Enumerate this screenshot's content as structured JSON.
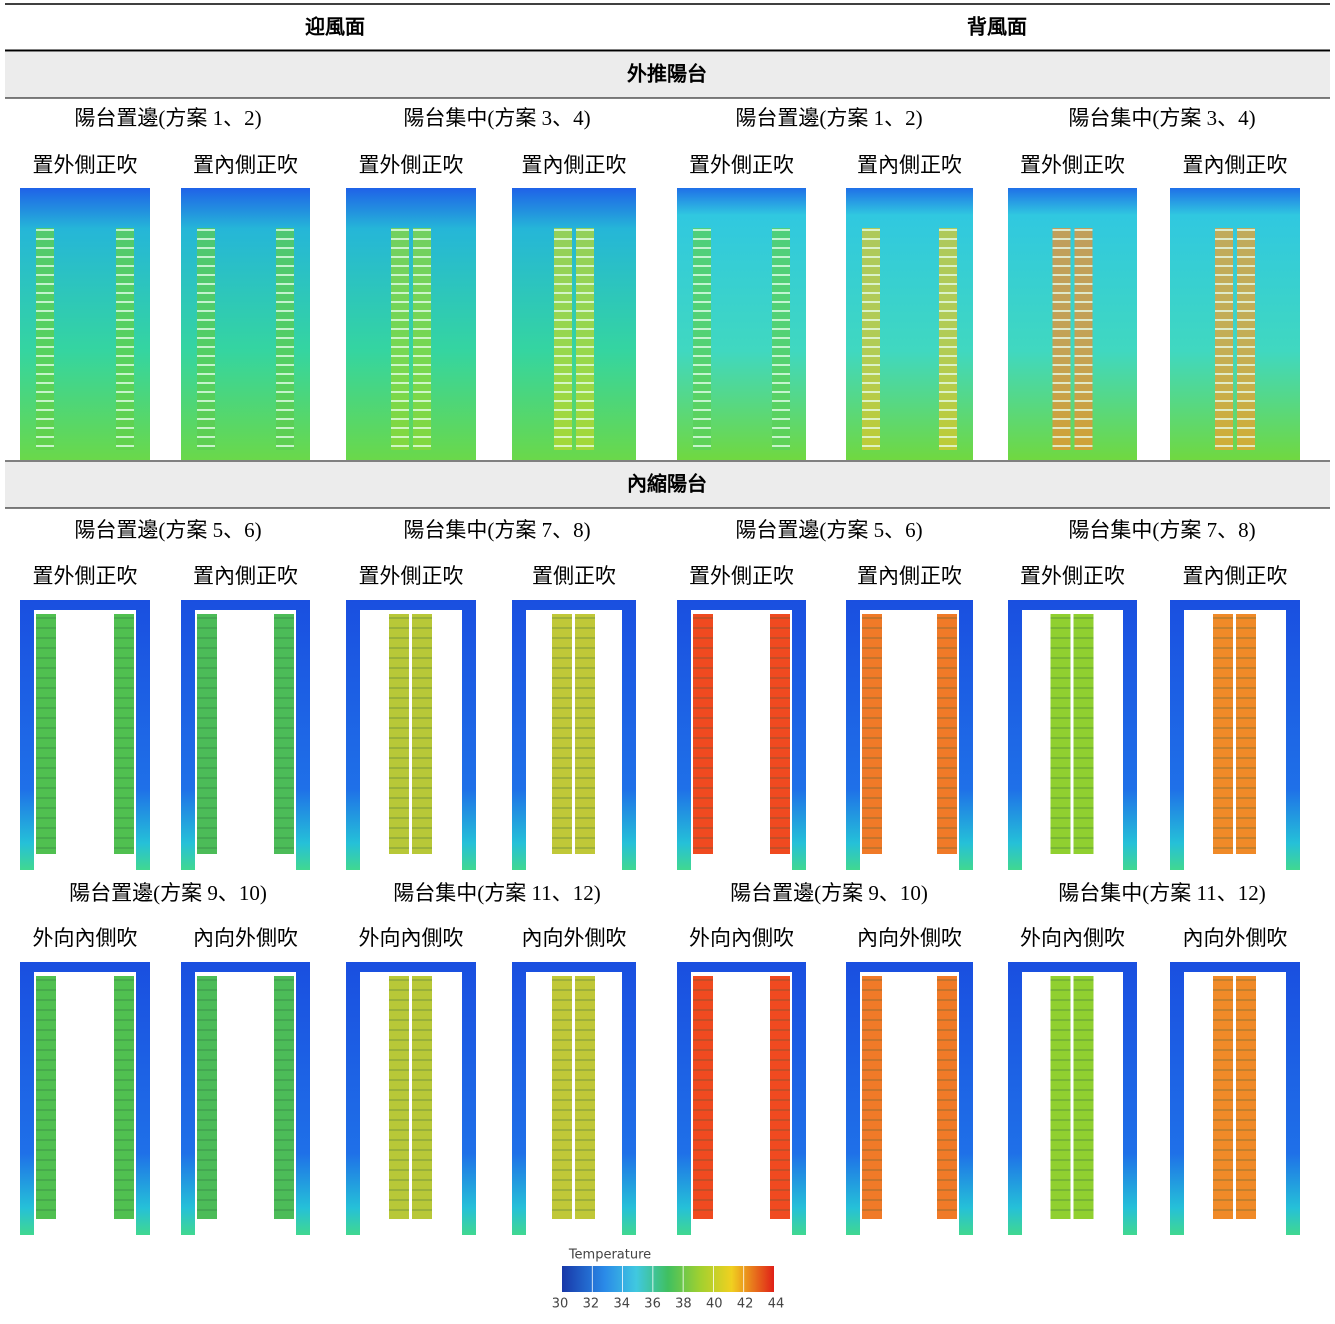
{
  "header": {
    "windward": "迎風面",
    "leeward": "背風面"
  },
  "sections": [
    {
      "title": "外推陽台",
      "rows": [
        {
          "schemes": [
            "陽台置邊(方案 1、2)",
            "陽台集中(方案 3、4)",
            "陽台置邊(方案 1、2)",
            "陽台集中(方案 3、4)"
          ],
          "cases": [
            "置外側正吹",
            "置內側正吹",
            "置外側正吹",
            "置內側正吹",
            "置外側正吹",
            "置內側正吹",
            "置外側正吹",
            "置內側正吹"
          ]
        }
      ]
    },
    {
      "title": "內縮陽台",
      "rows": [
        {
          "schemes": [
            "陽台置邊(方案 5、6)",
            "陽台集中(方案 7、8)",
            "陽台置邊(方案 5、6)",
            "陽台集中(方案 7、8)"
          ],
          "cases": [
            "置外側正吹",
            "置內側正吹",
            "置外側正吹",
            "置側正吹",
            "置外側正吹",
            "置內側正吹",
            "置外側正吹",
            "置內側正吹"
          ]
        },
        {
          "schemes": [
            "陽台置邊(方案 9、10)",
            "陽台集中(方案 11、12)",
            "陽台置邊(方案 9、10)",
            "陽台集中(方案 11、12)"
          ],
          "cases": [
            "外向內側吹",
            "內向外側吹",
            "外向內側吹",
            "內向外側吹",
            "外向內側吹",
            "內向外側吹",
            "外向內側吹",
            "內向外側吹"
          ]
        }
      ]
    }
  ],
  "legend": {
    "title": "Temperature",
    "ticks": [
      30,
      32,
      34,
      36,
      38,
      40,
      42,
      44
    ]
  }
}
